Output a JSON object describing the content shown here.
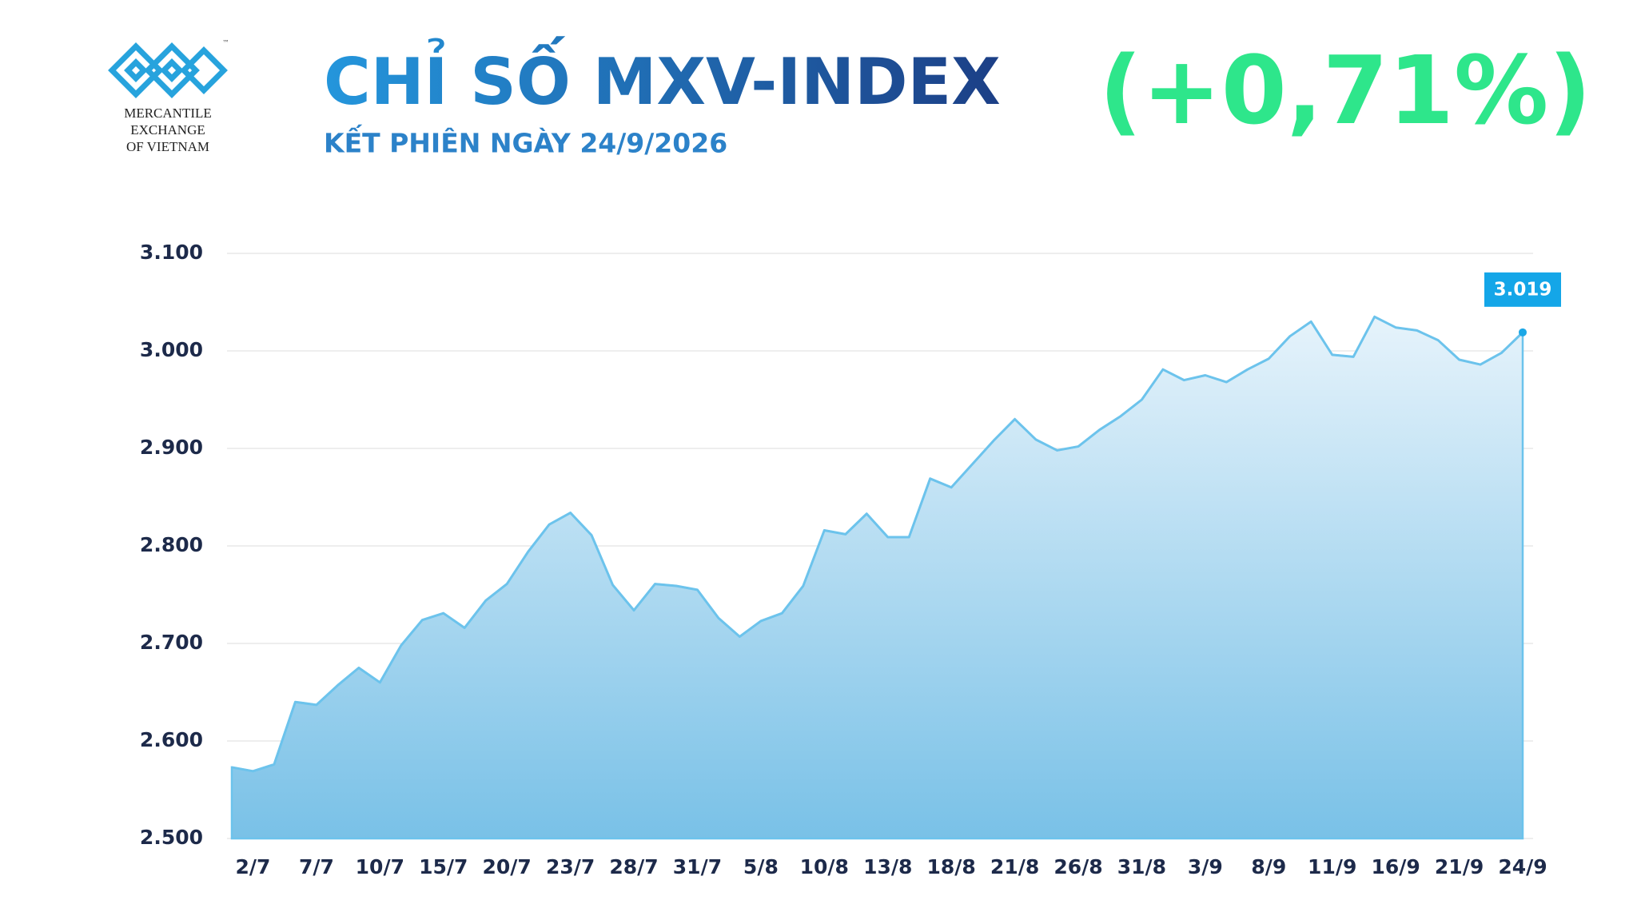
{
  "logo": {
    "lines": [
      "MERCANTILE",
      "EXCHANGE",
      "OF VIETNAM"
    ],
    "mark": "™"
  },
  "chart_data": {
    "type": "area",
    "title": "CHỈ SỐ MXV-INDEX",
    "subtitle": "KẾT PHIÊN NGÀY 24/9/2026",
    "change": "(+0,71%)",
    "categories": [
      null,
      "2/7",
      null,
      null,
      "7/7",
      null,
      null,
      "10/7",
      null,
      null,
      "15/7",
      null,
      null,
      "20/7",
      null,
      null,
      "23/7",
      null,
      null,
      "28/7",
      null,
      null,
      "31/7",
      null,
      null,
      "5/8",
      null,
      null,
      "10/8",
      null,
      null,
      "13/8",
      null,
      null,
      "18/8",
      null,
      null,
      "21/8",
      null,
      null,
      "26/8",
      null,
      null,
      "31/8",
      null,
      null,
      "3/9",
      null,
      null,
      "8/9",
      null,
      null,
      "11/9",
      null,
      null,
      "16/9",
      null,
      null,
      "21/9",
      null,
      null,
      "24/9"
    ],
    "values": [
      2573,
      2569,
      2576,
      2640,
      2637,
      2657,
      2675,
      2660,
      2698,
      2724,
      2731,
      2716,
      2744,
      2761,
      2794,
      2822,
      2834,
      2811,
      2760,
      2734,
      2761,
      2759,
      2755,
      2726,
      2707,
      2723,
      2731,
      2759,
      2816,
      2812,
      2833,
      2809,
      2809,
      2869,
      2860,
      2884,
      2908,
      2930,
      2909,
      2898,
      2902,
      2919,
      2933,
      2950,
      2981,
      2970,
      2975,
      2968,
      2981,
      2992,
      3015,
      3030,
      2996,
      2994,
      3035,
      3024,
      3021,
      3011,
      2991,
      2986,
      2998,
      3019
    ],
    "value_labels": [
      null,
      null,
      null,
      null,
      null,
      null,
      null,
      null,
      null,
      null,
      null,
      null,
      null,
      null,
      null,
      null,
      null,
      null,
      null,
      null,
      null,
      null,
      null,
      null,
      null,
      null,
      null,
      null,
      null,
      null,
      null,
      null,
      null,
      null,
      null,
      null,
      null,
      null,
      null,
      null,
      null,
      null,
      null,
      null,
      null,
      null,
      null,
      null,
      null,
      null,
      null,
      null,
      null,
      null,
      null,
      null,
      null,
      null,
      null,
      null,
      null,
      "3.019"
    ],
    "color": "#6cc3ec",
    "ylim": [
      2500,
      3100
    ],
    "yticks": [
      {
        "value": 2500,
        "label": "2.500"
      },
      {
        "value": 2600,
        "label": "2.600"
      },
      {
        "value": 2700,
        "label": "2.700"
      },
      {
        "value": 2800,
        "label": "2.800"
      },
      {
        "value": 2900,
        "label": "2.900"
      },
      {
        "value": 3000,
        "label": "3.000"
      },
      {
        "value": 3100,
        "label": "3.100"
      }
    ],
    "grid": true
  }
}
